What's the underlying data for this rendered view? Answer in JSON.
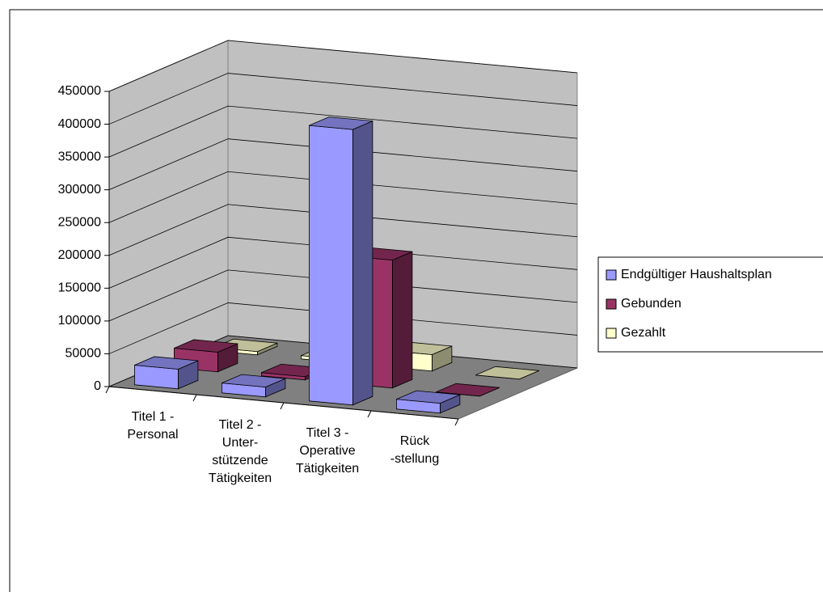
{
  "chart_data": {
    "type": "bar3d",
    "categories": [
      "Titel 1 -\nPersonal",
      "Titel 2 -\nUnter-\nstützende\nTätigkeiten",
      "Titel 3 -\nOperative\nTätigkeiten",
      "Rück\n-stellung"
    ],
    "series": [
      {
        "name": "Endgültiger Haushaltsplan",
        "color": "#9999ff",
        "values": [
          30000,
          15000,
          420000,
          15000
        ]
      },
      {
        "name": "Gebunden",
        "color": "#993366",
        "values": [
          30000,
          5000,
          195000,
          0
        ]
      },
      {
        "name": "Gezahlt",
        "color": "#ffffcc",
        "values": [
          5000,
          5000,
          25000,
          0
        ]
      }
    ],
    "ylim": [
      0,
      450000
    ],
    "yticks": [
      0,
      50000,
      100000,
      150000,
      200000,
      250000,
      300000,
      350000,
      400000,
      450000
    ],
    "grid": true
  }
}
